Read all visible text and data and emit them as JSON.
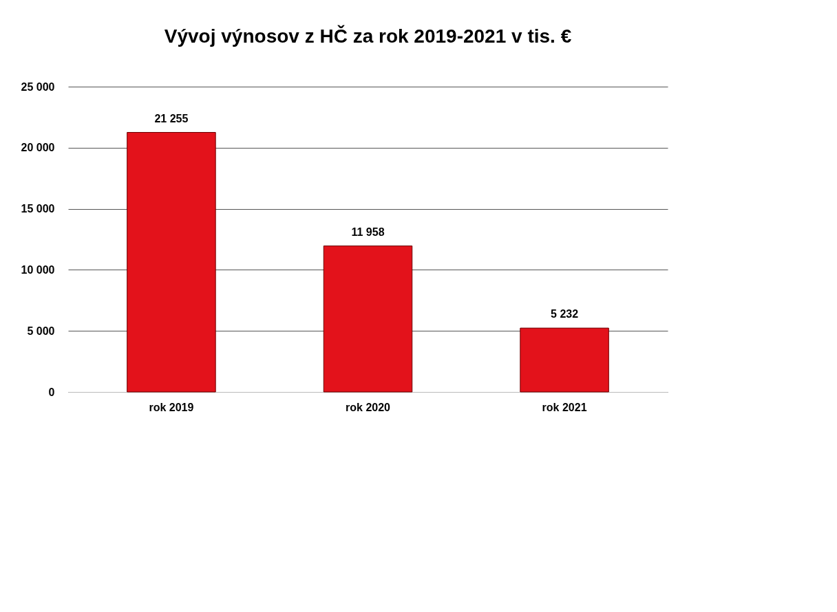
{
  "chart_data": {
    "type": "bar",
    "title": "Vývoj výnosov z HČ za rok 2019-2021 v tis. €",
    "categories": [
      "rok 2019",
      "rok 2020",
      "rok 2021"
    ],
    "values": [
      21255,
      11958,
      5232
    ],
    "color": "#e3121b",
    "value_labels": [
      "21 255",
      "11 958",
      "5 232"
    ],
    "ylim": [
      0,
      25000
    ],
    "yticks": [
      {
        "value": 0,
        "label": "0"
      },
      {
        "value": 5000,
        "label": "5 000"
      },
      {
        "value": 10000,
        "label": "10 000"
      },
      {
        "value": 15000,
        "label": "15 000"
      },
      {
        "value": 20000,
        "label": "20 000"
      },
      {
        "value": 25000,
        "label": "25 000"
      }
    ],
    "grid": "y"
  }
}
